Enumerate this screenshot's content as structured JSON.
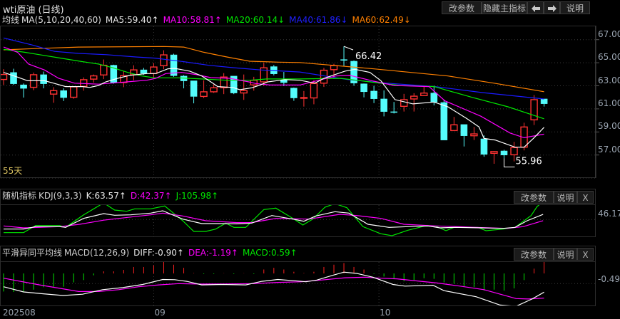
{
  "title": "wti原油 (日线)",
  "toolbar": {
    "params": "改参数",
    "hide_main": "隐藏主指标",
    "help": "说明"
  },
  "ma_legend": {
    "label": "均线",
    "params": "MA(5,10,20,40,60)",
    "ma5": "MA5:59.40↑",
    "ma10": "MA10:58.81↑",
    "ma20": "MA20:60.14↓",
    "ma40": "MA40:61.86↓",
    "ma60": "MA60:62.49↓"
  },
  "colors": {
    "up": "#ff3232",
    "down": "#54fcfc",
    "ma5": "#ffffff",
    "ma10": "#ff00ff",
    "ma20": "#00e600",
    "ma40": "#1a1aff",
    "ma60": "#ff8000",
    "k": "#ffffff",
    "d": "#ff00ff",
    "j": "#00e600",
    "diff": "#ffffff",
    "dea": "#ff00ff",
    "macd_up": "#ff2020",
    "macd_down": "#00e600"
  },
  "price_axis": [
    "67.00",
    "65.00",
    "63.00",
    "61.00",
    "59.00",
    "57.00"
  ],
  "price_levels": [
    67,
    65,
    63,
    61,
    59,
    57
  ],
  "days_label": "55天",
  "high_marker": {
    "label": "66.42",
    "index": 34,
    "value": 66.42
  },
  "low_marker": {
    "label": "55.96",
    "index": 50,
    "value": 55.96
  },
  "candles_ohlc": [
    [
      63.55,
      64.44,
      63.08,
      63.98
    ],
    [
      64.15,
      64.48,
      63.08,
      63.18
    ],
    [
      63.08,
      63.2,
      61.98,
      62.78
    ],
    [
      62.87,
      64.15,
      62.62,
      63.96
    ],
    [
      63.96,
      64.23,
      62.78,
      63.18
    ],
    [
      62.28,
      62.88,
      61.53,
      62.58
    ],
    [
      62.58,
      62.78,
      61.68,
      61.98
    ],
    [
      62.01,
      62.98,
      61.88,
      62.91
    ],
    [
      62.95,
      63.73,
      62.58,
      63.53
    ],
    [
      63.58,
      63.98,
      63.28,
      63.86
    ],
    [
      63.94,
      65.28,
      63.58,
      64.78
    ],
    [
      64.78,
      64.83,
      63.18,
      63.28
    ],
    [
      63.28,
      64.28,
      62.88,
      63.88
    ],
    [
      63.96,
      64.78,
      63.48,
      64.38
    ],
    [
      64.38,
      64.55,
      63.95,
      64.08
    ],
    [
      64.07,
      64.98,
      63.68,
      64.63
    ],
    [
      64.74,
      66.08,
      64.44,
      65.68
    ],
    [
      65.68,
      65.78,
      63.78,
      63.88
    ],
    [
      63.84,
      63.93,
      62.78,
      63.43
    ],
    [
      63.43,
      63.43,
      61.48,
      62.08
    ],
    [
      62.08,
      63.48,
      61.93,
      62.48
    ],
    [
      62.48,
      63.13,
      62.38,
      62.83
    ],
    [
      62.83,
      64.1,
      62.28,
      63.76
    ],
    [
      63.84,
      63.84,
      62.28,
      62.38
    ],
    [
      62.38,
      63.98,
      61.78,
      62.58
    ],
    [
      63.08,
      63.78,
      62.58,
      63.48
    ],
    [
      63.34,
      64.98,
      63.0,
      64.56
    ],
    [
      64.66,
      64.8,
      63.9,
      64.04
    ],
    [
      63.48,
      64.2,
      62.98,
      63.28
    ],
    [
      62.8,
      62.85,
      61.7,
      61.95
    ],
    [
      61.95,
      62.55,
      61.2,
      61.98
    ],
    [
      61.95,
      63.5,
      61.4,
      63.2
    ],
    [
      63.23,
      64.55,
      62.9,
      64.35
    ],
    [
      64.4,
      64.9,
      63.6,
      64.75
    ],
    [
      65.27,
      66.42,
      64.72,
      65.23
    ],
    [
      65.13,
      65.2,
      63.0,
      63.24
    ],
    [
      63.17,
      63.2,
      62.0,
      62.49
    ],
    [
      62.54,
      63.0,
      61.5,
      61.88
    ],
    [
      61.86,
      62.6,
      60.35,
      60.77
    ],
    [
      60.75,
      61.6,
      60.6,
      60.71
    ],
    [
      61.22,
      62.3,
      60.77,
      61.8
    ],
    [
      61.86,
      62.36,
      60.77,
      62.1
    ],
    [
      62.15,
      63.0,
      62.15,
      62.37
    ],
    [
      62.37,
      63.0,
      61.3,
      61.59
    ],
    [
      61.55,
      61.75,
      58.3,
      58.3
    ],
    [
      59.12,
      60.3,
      59.12,
      59.62
    ],
    [
      59.64,
      59.64,
      57.74,
      58.67
    ],
    [
      58.67,
      59.43,
      58.3,
      58.83
    ],
    [
      58.4,
      58.7,
      56.85,
      57.06
    ],
    [
      57.15,
      57.35,
      56.24,
      57.3
    ],
    [
      57.35,
      57.45,
      55.96,
      57.0
    ],
    [
      57.02,
      58.14,
      56.45,
      57.64
    ],
    [
      57.68,
      59.8,
      57.4,
      59.43
    ],
    [
      60.05,
      62.2,
      59.6,
      61.8
    ],
    [
      61.86,
      61.86,
      61.2,
      61.45
    ]
  ],
  "ma_series": {
    "ma60": {
      "i": [
        0,
        3,
        7.5,
        16,
        18,
        20,
        22.3,
        24.6,
        27.5,
        29.6,
        37,
        44.4,
        49,
        54
      ],
      "v": [
        66.12,
        66.22,
        66.36,
        66.41,
        66.36,
        65.91,
        65.5,
        65.13,
        65.05,
        65.02,
        64.47,
        63.85,
        63.23,
        62.49
      ]
    },
    "ma40": {
      "i": [
        0,
        2.9,
        5.1,
        7.5,
        10.3,
        13.2,
        15.1,
        18,
        20.5,
        23,
        25.8,
        29.6,
        34.4,
        38.3,
        43.1,
        47.9,
        54
      ],
      "v": [
        67.15,
        66.53,
        65.98,
        65.81,
        65.7,
        65.5,
        65.4,
        65.09,
        64.78,
        64.57,
        64.37,
        64.2,
        63.54,
        63.23,
        62.93,
        62.41,
        61.86
      ]
    },
    "ma20": {
      "i": [
        0,
        2.1,
        3.6,
        5.7,
        7.9,
        9.5,
        10.9,
        12.4,
        13.8,
        15.1,
        17.5,
        19.8,
        22.3,
        24.6,
        26.3,
        29.6,
        33.7,
        36.6,
        39.6,
        43,
        46.8,
        50.4,
        54
      ],
      "v": [
        66.16,
        65.91,
        65.7,
        65.4,
        65.09,
        64.88,
        64.57,
        64.16,
        63.85,
        63.69,
        63.69,
        63.59,
        63.48,
        63.48,
        63.59,
        63.59,
        63.65,
        63.34,
        63.03,
        62.93,
        62.0,
        61.18,
        60.14
      ]
    },
    "ma10": {
      "i": [
        0,
        1.4,
        2.5,
        4.1,
        5.5,
        7.1,
        9.5,
        10.7,
        12.3,
        14.3,
        15.2,
        16.2,
        17.8,
        19.3,
        20.7,
        22.6,
        24.5,
        25.2,
        26.6,
        29.6,
        33.2,
        34.6,
        36.8,
        39,
        42.5,
        44.1,
        47.7,
        50.6,
        52,
        54
      ],
      "v": [
        66.36,
        65.91,
        64.88,
        64.37,
        63.65,
        63.23,
        63.14,
        63.23,
        63.34,
        63.48,
        63.65,
        64.06,
        64.16,
        63.96,
        63.71,
        63.65,
        63.34,
        63.2,
        63.07,
        63.07,
        63.85,
        63.9,
        63.44,
        63.03,
        62.93,
        61.69,
        60.36,
        58.91,
        58.5,
        58.81
      ]
    },
    "ma5": {
      "i": [
        0,
        1.4,
        2.4,
        4.1,
        5,
        6.2,
        7.9,
        8.6,
        9.5,
        10.2,
        11.4,
        12.6,
        14.3,
        15.2,
        16.4,
        17.1,
        18.6,
        19.8,
        20.9,
        21.4,
        22.9,
        23.6,
        24.8,
        25.5,
        26.4,
        28.1,
        29.6,
        31.1,
        32,
        34.1,
        35.1,
        36.6,
        37.7,
        39.1,
        40.9,
        43,
        44.4,
        46.3,
        47.5,
        48,
        49.1,
        51.1,
        52,
        53,
        54
      ],
      "v": [
        64.16,
        63.75,
        63.44,
        63.44,
        63.23,
        62.93,
        62.93,
        62.86,
        63.03,
        63.34,
        63.65,
        63.9,
        64.06,
        64.06,
        64.47,
        64.51,
        64.27,
        63.85,
        63.23,
        62.93,
        62.86,
        62.66,
        62.83,
        63.03,
        63.34,
        63.54,
        63.48,
        63.23,
        63.65,
        64.27,
        64.43,
        64.16,
        63.44,
        61.8,
        61.43,
        61.59,
        61.18,
        60.15,
        59.43,
        58.44,
        58.3,
        57.68,
        57.68,
        58.5,
        59.4
      ]
    }
  },
  "kdj": {
    "title": "随机指标",
    "params": "KDJ(9,3,3)",
    "k_label": "K:63.57↑",
    "d_label": "D:42.37↑",
    "j_label": "J:105.98↑",
    "axis_label": "46.17",
    "axis_value": 46.17,
    "buttons": {
      "params": "改参数",
      "help": "说明",
      "close": "X"
    },
    "k": {
      "i": [
        0,
        2,
        3.2,
        5.6,
        6.2,
        8,
        10,
        11.1,
        12.7,
        14.7,
        15.9,
        17.9,
        19.8,
        21.7,
        23.3,
        24.8,
        26.8,
        28.9,
        30,
        31.2,
        33.1,
        34.5,
        36.4,
        38.5,
        40.4,
        42.4,
        43.6,
        45.2,
        47.6,
        49.9,
        51.1,
        52.3,
        53.9
      ],
      "v": [
        14,
        14,
        22.2,
        22.2,
        19.8,
        50,
        66.1,
        60.6,
        62,
        67.8,
        75.7,
        47.6,
        32.5,
        32.5,
        31.6,
        34.2,
        59.6,
        47.6,
        40.4,
        58.2,
        72.6,
        67.8,
        30.1,
        19.8,
        22.2,
        24.6,
        18.1,
        19.8,
        18.1,
        16.4,
        19.8,
        42.1,
        63.57
      ]
    },
    "d": {
      "i": [
        0,
        2,
        5.6,
        7.6,
        10,
        12.7,
        14.7,
        15.9,
        17.9,
        20.2,
        23.3,
        24.8,
        27.2,
        30.5,
        33.6,
        35.3,
        37.7,
        40,
        43.2,
        47.2,
        50.3,
        51.9,
        53.9
      ],
      "v": [
        24.6,
        18.1,
        22.2,
        30.1,
        44,
        54.5,
        62,
        67.8,
        58.2,
        42.1,
        35.9,
        35.9,
        50,
        47.6,
        63.6,
        59.6,
        50,
        30.1,
        24.6,
        19.8,
        16.4,
        22.2,
        42.37
      ]
    },
    "j": {
      "i": [
        0,
        2,
        3.2,
        5.6,
        6.2,
        8,
        10,
        11.1,
        12.3,
        13.1,
        14.7,
        16.1,
        17.9,
        19,
        20.2,
        21.2,
        22.2,
        23,
        24.2,
        26,
        27.2,
        28.9,
        29.9,
        30.9,
        32.1,
        33.1,
        34.3,
        35.9,
        37.7,
        38.8,
        40.4,
        42,
        43.2,
        44.2,
        45,
        47.4,
        48.2,
        49.9,
        51.1,
        52.7,
        53.3,
        53.9
      ],
      "v": [
        2,
        2,
        26,
        26,
        19.8,
        62,
        102.1,
        78.1,
        74,
        82.2,
        82.2,
        91.8,
        42.1,
        6.1,
        6.1,
        14,
        34.2,
        19.8,
        19.8,
        79.8,
        84.6,
        50,
        27.7,
        47.6,
        87.7,
        99.7,
        86,
        22.2,
        -1.8,
        -8.3,
        10.2,
        23.6,
        23.6,
        8.5,
        19.8,
        19.8,
        8.5,
        14,
        19.8,
        59.6,
        90.1,
        105.98
      ]
    }
  },
  "macd": {
    "title": "平滑异同平均线",
    "params": "MACD(12,26,9)",
    "diff_label": "DIFF:-0.90↑",
    "dea_label": "DEA:-1.19↑",
    "macd_label": "MACD:0.59↑",
    "axis_label": "-0.49",
    "axis_value": -0.49,
    "buttons": {
      "params": "改参数",
      "help": "说明",
      "close": "X"
    },
    "bars": [
      -0.87,
      -0.89,
      -0.91,
      -0.78,
      -0.66,
      -0.64,
      -0.64,
      -0.43,
      -0.32,
      -0.09,
      0.1,
      0.1,
      0.17,
      0.31,
      0.31,
      0.39,
      0.57,
      0.42,
      0.27,
      0.02,
      -0.03,
      -0.03,
      0.01,
      -0.03,
      0.01,
      -0.03,
      0.19,
      0.27,
      0.19,
      0.08,
      0.02,
      0.08,
      0.31,
      0.42,
      0.5,
      0.31,
      0.19,
      -0.03,
      -0.15,
      -0.26,
      -0.38,
      -0.32,
      -0.23,
      -0.26,
      -0.43,
      -0.49,
      -0.61,
      -0.66,
      -0.83,
      -0.78,
      -0.83,
      -0.72,
      -0.32,
      0.23,
      0.59
    ],
    "diff": {
      "i": [
        0,
        2,
        3.97,
        5.95,
        7.9,
        9.9,
        11.9,
        13.9,
        15.9,
        17.1,
        18.3,
        19.8,
        21.8,
        24.2,
        25.8,
        27.4,
        29,
        30.2,
        31.3,
        32.9,
        34,
        35.3,
        36.9,
        38.9,
        40.1,
        42.9,
        44,
        47.2,
        49.6,
        51.2,
        52.8,
        54
      ],
      "v": [
        -0.64,
        -0.89,
        -0.98,
        -1.06,
        -1,
        -0.78,
        -0.68,
        -0.53,
        -0.29,
        -0.3,
        -0.38,
        -0.55,
        -0.53,
        -0.55,
        -0.38,
        -0.29,
        -0.35,
        -0.4,
        -0.32,
        -0.09,
        0.06,
        0,
        -0.18,
        -0.53,
        -0.61,
        -0.57,
        -0.83,
        -1.12,
        -1.52,
        -1.58,
        -1.23,
        -0.9
      ]
    },
    "dea": {
      "i": [
        0,
        3.6,
        7.5,
        9.5,
        11.5,
        13.5,
        15.5,
        17.5,
        19.4,
        21.8,
        25,
        27.4,
        29.8,
        32.1,
        34.1,
        36.1,
        37.7,
        39.3,
        41.7,
        43.3,
        45.6,
        48,
        51.2,
        52.4,
        54
      ],
      "v": [
        -0.23,
        -0.55,
        -0.87,
        -0.87,
        -0.78,
        -0.64,
        -0.55,
        -0.49,
        -0.51,
        -0.51,
        -0.49,
        -0.43,
        -0.4,
        -0.3,
        -0.21,
        -0.18,
        -0.23,
        -0.26,
        -0.38,
        -0.46,
        -0.61,
        -0.78,
        -1.21,
        -1.23,
        -1.19
      ]
    }
  },
  "dates": [
    {
      "label": "202508",
      "index": 0
    },
    {
      "label": "09",
      "index": 15
    },
    {
      "label": "10",
      "index": 37.5
    }
  ]
}
